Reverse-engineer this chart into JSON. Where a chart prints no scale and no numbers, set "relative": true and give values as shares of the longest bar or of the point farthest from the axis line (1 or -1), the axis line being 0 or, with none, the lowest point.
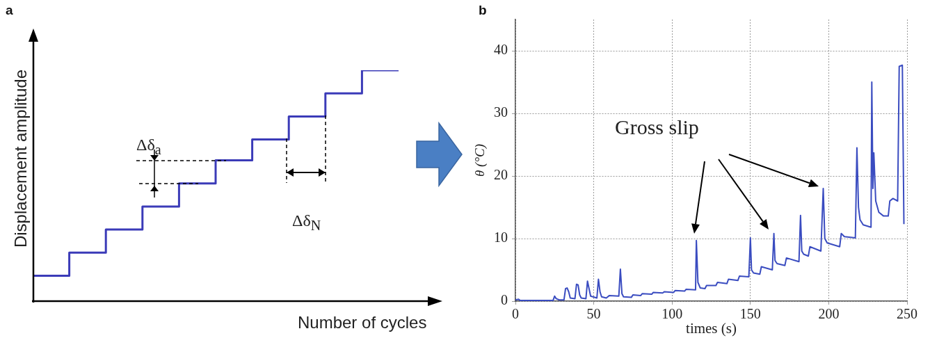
{
  "chart_data": [
    {
      "type": "step",
      "title": "a",
      "xlabel": "Number of cycles",
      "ylabel": "Displacement amplitude",
      "relative": true,
      "tick_labels": false,
      "marker": "none",
      "categories": [
        null,
        null,
        null,
        null,
        null,
        null,
        null,
        null,
        null,
        null,
        null
      ],
      "series": [
        {
          "color": "#3b3bb8",
          "values": [
            0.11,
            0.21,
            0.31,
            0.41,
            0.51,
            0.61,
            0.7,
            0.8,
            0.9,
            1,
            1
          ]
        }
      ],
      "annotations": [
        "Δδ$_{a}$",
        "Δδ$_{N}$"
      ]
    },
    {
      "type": "line",
      "title": "b",
      "xlabel": "times (s)",
      "ylabel": "θ (°C)",
      "grid": true,
      "marker": "none",
      "xlim": [
        0,
        250
      ],
      "xticks": [
        0,
        50,
        100,
        150,
        200,
        250
      ],
      "ylim": [
        0,
        45
      ],
      "yticks": [
        0,
        10,
        20,
        30,
        40
      ],
      "series": [
        {
          "color": "#3a4cc0",
          "x": [
            0,
            2,
            3,
            24,
            25,
            26,
            28,
            31,
            32,
            33,
            34,
            35,
            38,
            39,
            40,
            41,
            42,
            45,
            46,
            47,
            48,
            52,
            53,
            54,
            55,
            58,
            60,
            66,
            67,
            68,
            69,
            74,
            75,
            80,
            81,
            87,
            88,
            94,
            95,
            101,
            102,
            108,
            109,
            115,
            115.5,
            116.5,
            118,
            121,
            122,
            128,
            129,
            135,
            136,
            142,
            143,
            149,
            150,
            150.7,
            152,
            156,
            157,
            164,
            165,
            165.7,
            167,
            172,
            173,
            181,
            182,
            182.8,
            184,
            187,
            188,
            195,
            196.5,
            197.5,
            199,
            207,
            208,
            210,
            217,
            218,
            219,
            220,
            222,
            227,
            227.5,
            228.2,
            228.8,
            230,
            232,
            235,
            238,
            239,
            241,
            244,
            245,
            247,
            248
          ],
          "values": [
            0.2,
            0.3,
            0.1,
            0.1,
            0.8,
            0.4,
            0.2,
            0.2,
            2.0,
            2.1,
            1.5,
            0.5,
            0.4,
            2.7,
            2.6,
            1.0,
            0.5,
            0.4,
            3.2,
            2.0,
            0.8,
            0.5,
            3.5,
            1.5,
            0.7,
            0.5,
            0.9,
            0.8,
            5.1,
            1.2,
            0.7,
            0.6,
            1.0,
            0.9,
            1.2,
            1.1,
            1.4,
            1.3,
            1.5,
            1.4,
            1.7,
            1.6,
            1.9,
            1.8,
            9.7,
            3.0,
            2.1,
            2.0,
            2.5,
            2.5,
            3.0,
            2.8,
            3.5,
            3.3,
            4.0,
            3.9,
            10.1,
            5.0,
            4.5,
            4.3,
            5.5,
            5.0,
            10.8,
            6.5,
            6.0,
            5.7,
            6.9,
            6.3,
            13.7,
            8.0,
            7.5,
            7.2,
            8.7,
            8.0,
            18.0,
            10.0,
            9.3,
            8.7,
            10.8,
            10.3,
            10.1,
            24.5,
            15.0,
            13.0,
            12.2,
            11.8,
            35.0,
            18.0,
            23.7,
            16.0,
            14.2,
            13.6,
            13.6,
            16.0,
            16.4,
            16.0,
            37.5,
            37.7,
            12.3
          ]
        }
      ],
      "annotations": [
        "Gross slip"
      ]
    }
  ]
}
